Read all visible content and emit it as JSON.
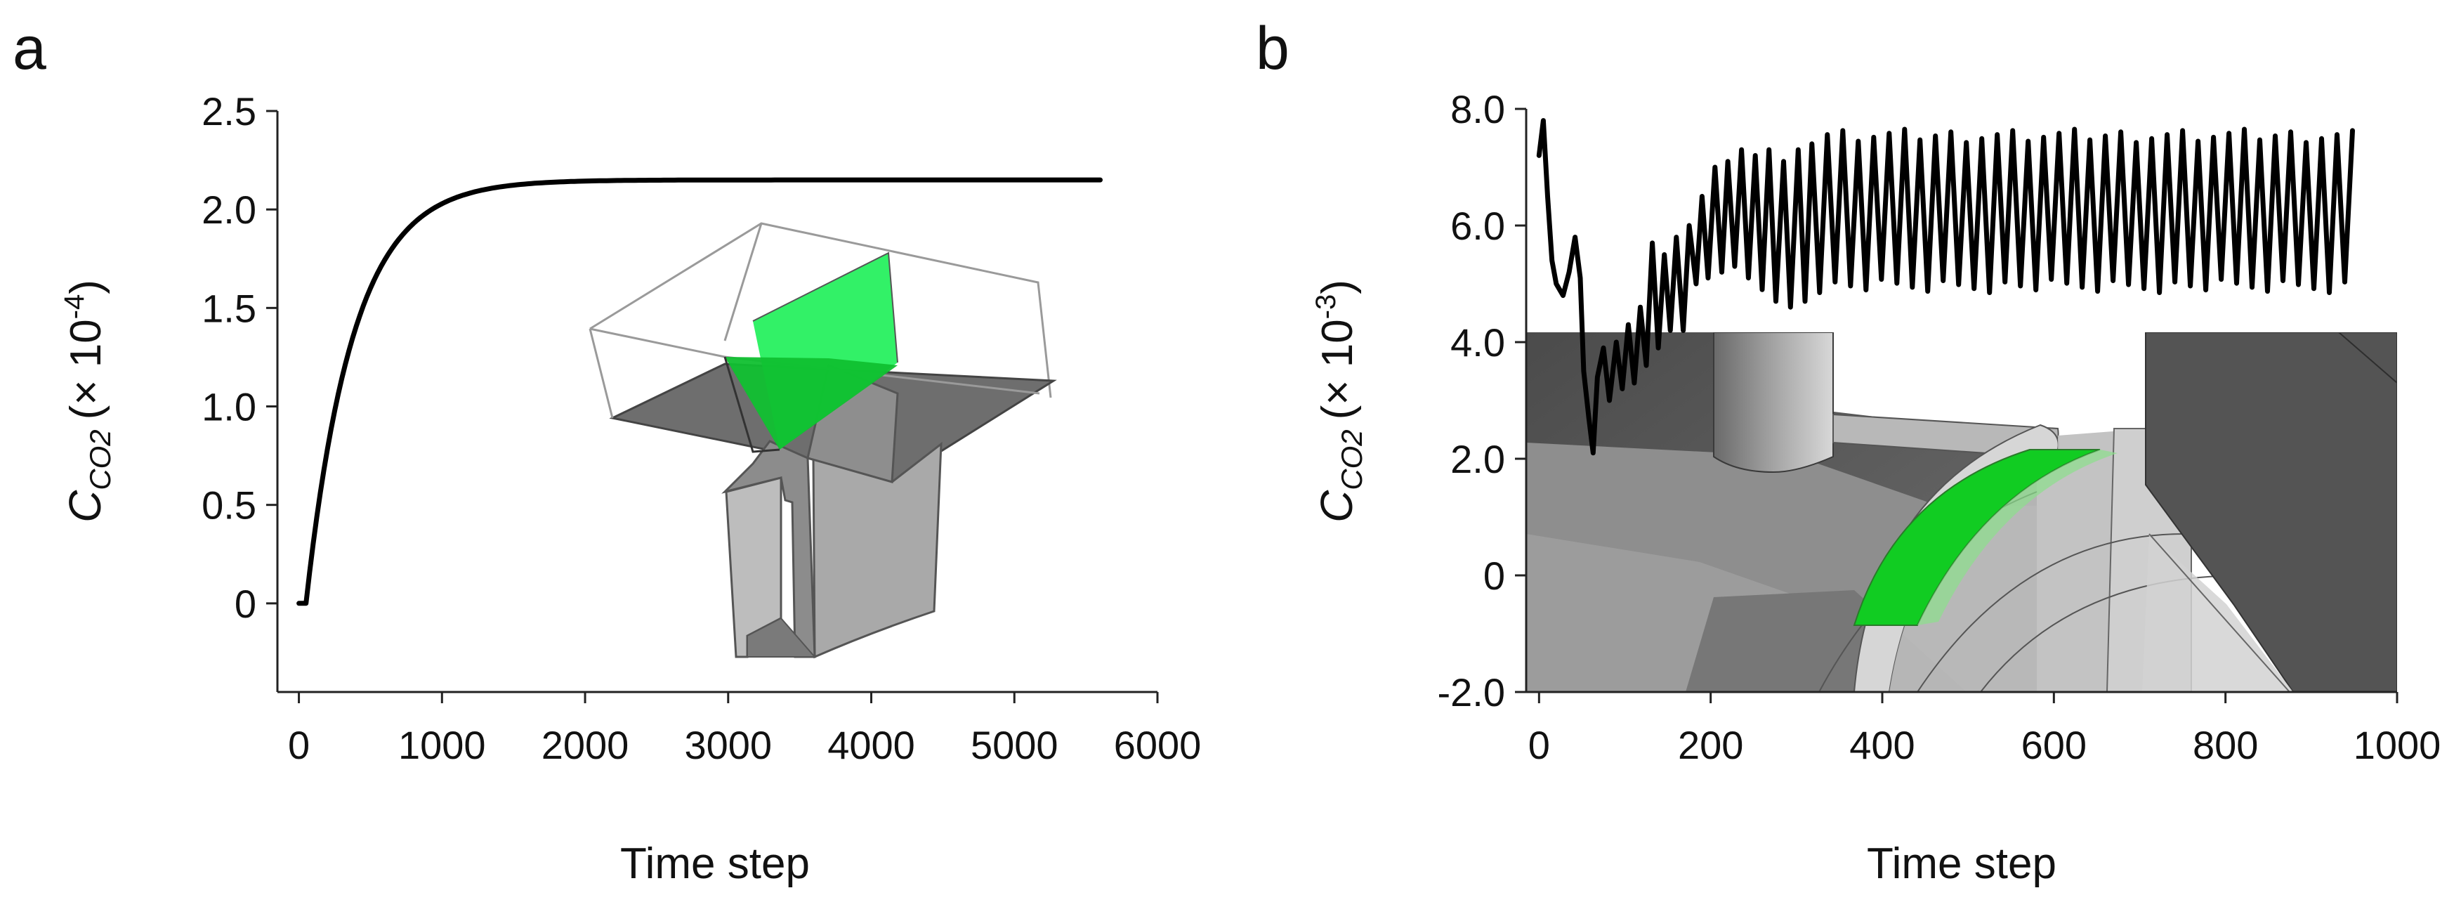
{
  "chart_data": [
    {
      "panel": "a",
      "type": "line",
      "title": "",
      "xlabel": "Time step",
      "ylabel": "C",
      "ylabel_sub": "CO2",
      "ylabel_unit_prefix": "(× 10",
      "ylabel_exp": "-4",
      "ylabel_unit_suffix": ")",
      "xlim": [
        -150,
        6000
      ],
      "ylim": [
        -0.45,
        2.5
      ],
      "xticks": [
        0,
        1000,
        2000,
        3000,
        4000,
        5000,
        6000
      ],
      "xtick_labels": [
        "0",
        "1000",
        "2000",
        "3000",
        "4000",
        "5000",
        "6000"
      ],
      "yticks": [
        0,
        0.5,
        1.0,
        1.5,
        2.0,
        2.5
      ],
      "ytick_labels": [
        "0",
        "0.5",
        "1.0",
        "1.5",
        "2.0",
        "2.5"
      ],
      "grid": false,
      "series": [
        {
          "name": "C_CO2",
          "model": "rise",
          "start_x": 50,
          "end_x": 5600,
          "plateau": 2.15,
          "tau": 330,
          "step": 25
        }
      ]
    },
    {
      "panel": "b",
      "type": "line",
      "title": "",
      "xlabel": "Time step",
      "ylabel": "C",
      "ylabel_sub": "CO2",
      "ylabel_unit_prefix": "(× 10",
      "ylabel_exp": "-3",
      "ylabel_unit_suffix": ")",
      "xlim": [
        -15,
        1000
      ],
      "ylim": [
        -2.0,
        8.0
      ],
      "xticks": [
        0,
        200,
        400,
        600,
        800,
        1000
      ],
      "xtick_labels": [
        "0",
        "200",
        "400",
        "600",
        "800",
        "1000"
      ],
      "yticks": [
        -2.0,
        0,
        2.0,
        4.0,
        6.0,
        8.0
      ],
      "ytick_labels": [
        "-2.0",
        "0",
        "2.0",
        "4.0",
        "6.0",
        "8.0"
      ],
      "grid": false,
      "series": [
        {
          "name": "C_CO2",
          "model": "oscillation",
          "points": [
            [
              0,
              7.2
            ],
            [
              5,
              7.8
            ],
            [
              10,
              6.5
            ],
            [
              15,
              5.4
            ],
            [
              20,
              5.0
            ],
            [
              28,
              4.8
            ],
            [
              35,
              5.2
            ],
            [
              42,
              5.8
            ],
            [
              48,
              5.1
            ],
            [
              52,
              3.5
            ],
            [
              58,
              2.7
            ],
            [
              63,
              2.1
            ],
            [
              68,
              3.4
            ],
            [
              75,
              3.9
            ],
            [
              82,
              3.0
            ],
            [
              90,
              4.0
            ],
            [
              97,
              3.2
            ],
            [
              104,
              4.3
            ],
            [
              111,
              3.3
            ],
            [
              118,
              4.6
            ],
            [
              125,
              3.6
            ],
            [
              132,
              5.7
            ],
            [
              139,
              3.9
            ],
            [
              146,
              5.5
            ],
            [
              153,
              4.2
            ],
            [
              160,
              5.8
            ],
            [
              168,
              4.2
            ],
            [
              175,
              6.0
            ],
            [
              183,
              5.0
            ],
            [
              190,
              6.5
            ],
            [
              197,
              5.1
            ],
            [
              205,
              7.0
            ],
            [
              213,
              5.2
            ],
            [
              220,
              7.1
            ],
            [
              228,
              5.3
            ],
            [
              236,
              7.3
            ],
            [
              244,
              5.1
            ],
            [
              252,
              7.2
            ],
            [
              260,
              4.9
            ],
            [
              268,
              7.3
            ],
            [
              276,
              4.7
            ],
            [
              285,
              7.1
            ],
            [
              293,
              4.6
            ],
            [
              302,
              7.3
            ],
            [
              310,
              4.7
            ],
            [
              318,
              7.4
            ]
          ],
          "osc": {
            "start": 318,
            "end": 950,
            "period": 18,
            "max": 7.65,
            "min": 4.85
          }
        }
      ]
    }
  ],
  "insets": {
    "a": {
      "description_icon": "turbine-geometry-inset",
      "highlight_color": "#1ee84a",
      "dark_gray": "#6b6b6b",
      "light_gray": "#b5b5b5"
    },
    "b": {
      "description_icon": "turbine-closeup-inset",
      "highlight_color": "#11cc22"
    }
  }
}
